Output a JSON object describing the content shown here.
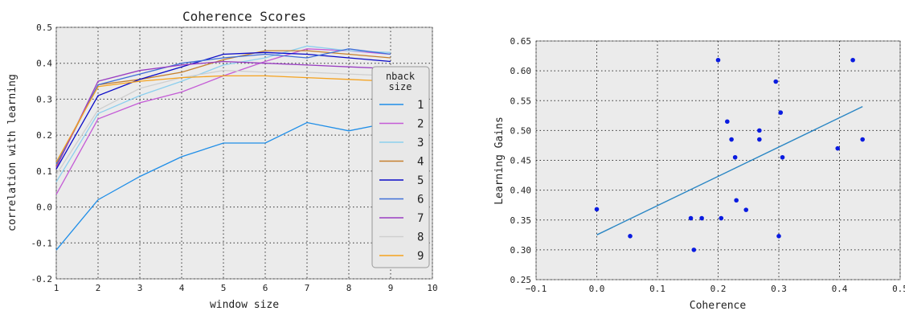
{
  "chart_data": [
    {
      "type": "line",
      "title": "Coherence Scores",
      "xlabel": "window size",
      "ylabel": "correlation with learning",
      "xlim": [
        1,
        10
      ],
      "ylim": [
        -0.2,
        0.5
      ],
      "xticks": [
        "1",
        "2",
        "3",
        "4",
        "5",
        "6",
        "7",
        "8",
        "9",
        "10"
      ],
      "yticks": [
        "-0.2",
        "-0.1",
        "0.0",
        "0.1",
        "0.2",
        "0.3",
        "0.4",
        "0.5"
      ],
      "grid": true,
      "legend_title": "nback\nsize",
      "legend_position": "right",
      "x": [
        1,
        2,
        3,
        4,
        5,
        6,
        7,
        8,
        9
      ],
      "series": [
        {
          "name": "1",
          "color": "#1f8ee8",
          "values": [
            -0.12,
            0.02,
            0.085,
            0.14,
            0.178,
            0.178,
            0.235,
            0.212,
            0.235
          ]
        },
        {
          "name": "2",
          "color": "#c45bd6",
          "values": [
            0.035,
            0.245,
            0.29,
            0.32,
            0.365,
            0.405,
            0.44,
            0.435,
            0.425
          ]
        },
        {
          "name": "3",
          "color": "#8ccfee",
          "values": [
            0.07,
            0.26,
            0.31,
            0.35,
            0.395,
            0.415,
            0.448,
            0.435,
            0.43
          ]
        },
        {
          "name": "4",
          "color": "#c5802e",
          "values": [
            0.115,
            0.34,
            0.355,
            0.375,
            0.41,
            0.435,
            0.435,
            0.425,
            0.415
          ]
        },
        {
          "name": "5",
          "color": "#0a0ac8",
          "values": [
            0.105,
            0.31,
            0.355,
            0.39,
            0.425,
            0.43,
            0.425,
            0.415,
            0.405
          ]
        },
        {
          "name": "6",
          "color": "#3f6fd8",
          "values": [
            0.12,
            0.34,
            0.37,
            0.4,
            0.415,
            0.425,
            0.415,
            0.44,
            0.425
          ]
        },
        {
          "name": "7",
          "color": "#9a3dc2",
          "values": [
            0.11,
            0.35,
            0.38,
            0.395,
            0.405,
            0.4,
            0.395,
            0.39,
            0.385
          ]
        },
        {
          "name": "8",
          "color": "#cfcfcf",
          "values": [
            0.09,
            0.27,
            0.33,
            0.36,
            0.38,
            0.375,
            0.375,
            0.37,
            0.365
          ]
        },
        {
          "name": "9",
          "color": "#f5a21e",
          "values": [
            0.125,
            0.335,
            0.35,
            0.36,
            0.365,
            0.365,
            0.36,
            0.355,
            0.35
          ]
        }
      ]
    },
    {
      "type": "scatter",
      "title": "",
      "xlabel": "Coherence",
      "ylabel": "Learning Gains",
      "xlim": [
        -0.1,
        0.5
      ],
      "ylim": [
        0.25,
        0.65
      ],
      "xticks": [
        "−0.1",
        "0.0",
        "0.1",
        "0.2",
        "0.3",
        "0.4",
        "0.5"
      ],
      "yticks": [
        "0.25",
        "0.30",
        "0.35",
        "0.40",
        "0.45",
        "0.50",
        "0.55",
        "0.60",
        "0.65"
      ],
      "grid": true,
      "point_color": "#0a1be0",
      "fit_color": "#2a86c4",
      "points": [
        [
          0.0,
          0.368
        ],
        [
          0.055,
          0.323
        ],
        [
          0.155,
          0.353
        ],
        [
          0.16,
          0.3
        ],
        [
          0.173,
          0.353
        ],
        [
          0.2,
          0.618
        ],
        [
          0.205,
          0.353
        ],
        [
          0.215,
          0.515
        ],
        [
          0.222,
          0.485
        ],
        [
          0.228,
          0.455
        ],
        [
          0.23,
          0.383
        ],
        [
          0.246,
          0.367
        ],
        [
          0.268,
          0.5
        ],
        [
          0.268,
          0.485
        ],
        [
          0.295,
          0.582
        ],
        [
          0.3,
          0.323
        ],
        [
          0.303,
          0.53
        ],
        [
          0.306,
          0.455
        ],
        [
          0.397,
          0.47
        ],
        [
          0.422,
          0.618
        ],
        [
          0.438,
          0.485
        ]
      ],
      "fit_line": {
        "x": [
          0.0,
          0.438
        ],
        "y": [
          0.325,
          0.54
        ]
      }
    }
  ]
}
